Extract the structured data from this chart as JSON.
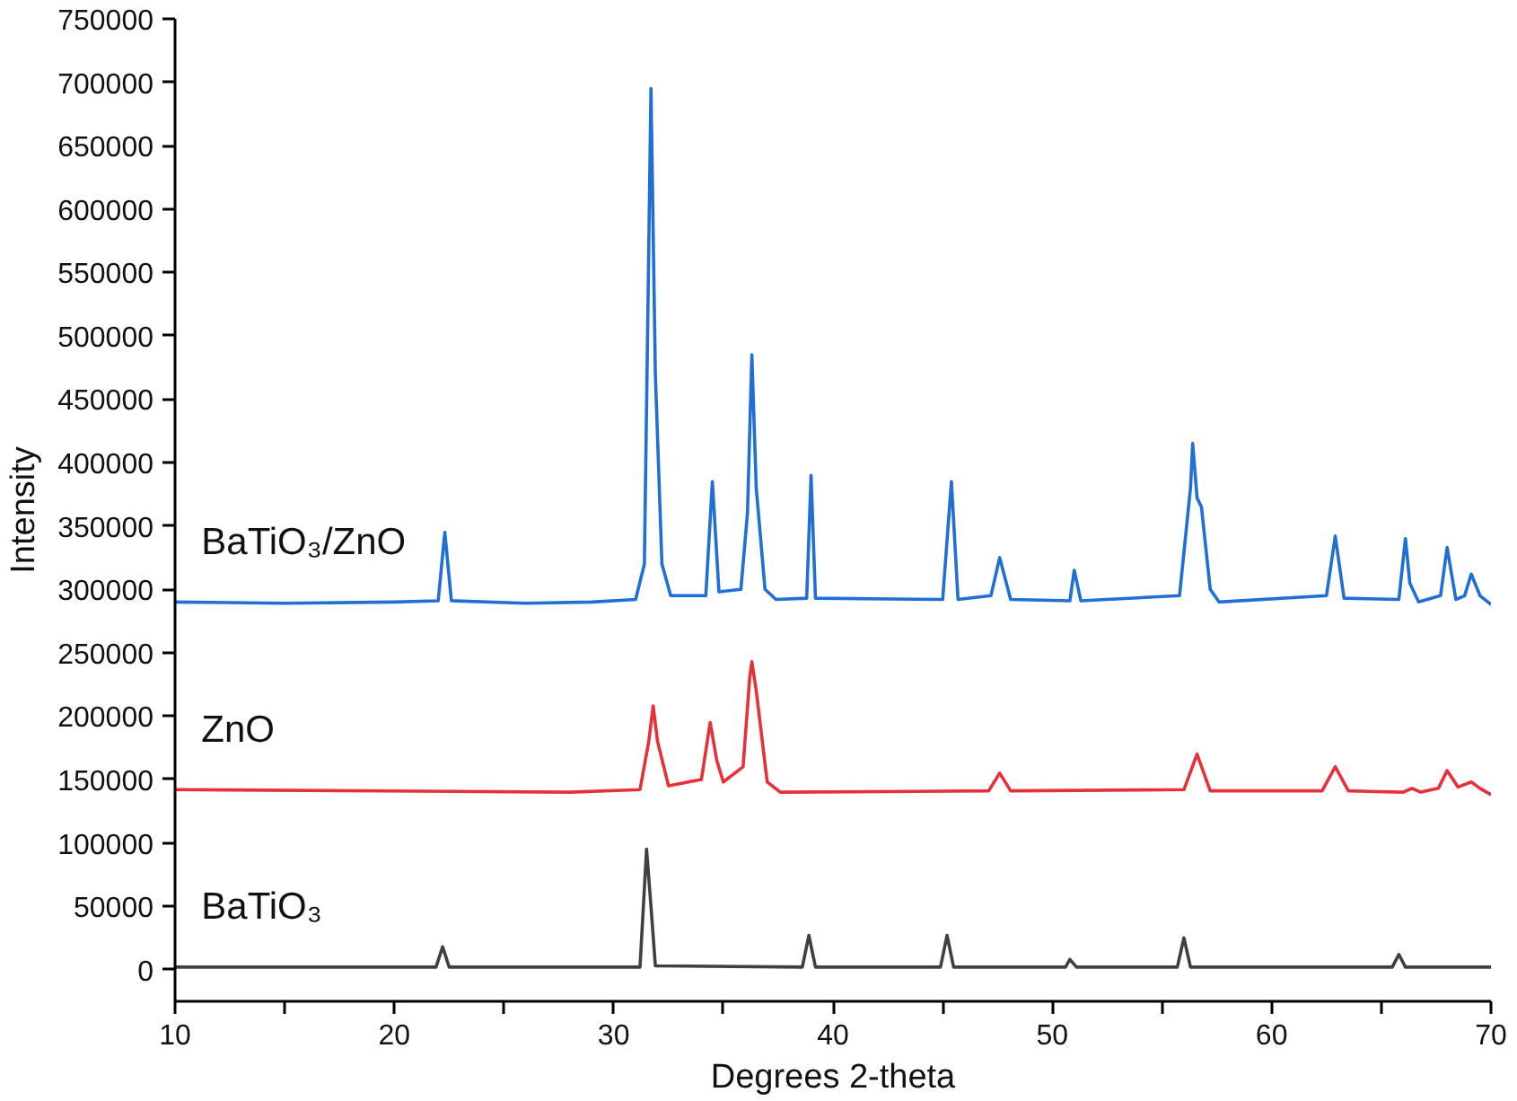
{
  "chart_data": {
    "type": "line",
    "xlabel": "Degrees 2-theta",
    "ylabel": "Intensity",
    "xlim": [
      10,
      70
    ],
    "ylim": [
      -25000,
      750000
    ],
    "xticks": [
      10,
      {
        "value": 15,
        "label": null
      },
      20,
      {
        "value": 25,
        "label": null
      },
      30,
      {
        "value": 35,
        "label": null
      },
      40,
      {
        "value": 45,
        "label": null
      },
      50,
      {
        "value": 55,
        "label": null
      },
      60,
      {
        "value": 65,
        "label": null
      },
      70
    ],
    "yticks": [
      0,
      50000,
      100000,
      150000,
      200000,
      250000,
      300000,
      350000,
      400000,
      450000,
      500000,
      550000,
      600000,
      650000,
      700000,
      750000
    ],
    "grid": false,
    "marker": "none",
    "line_style": "solid",
    "series": [
      {
        "name": "BaTiO₃/ZnO",
        "color": "#1f6fd6",
        "x": [
          10,
          15,
          20,
          22.0,
          22.3,
          22.6,
          26,
          29,
          31.0,
          31.4,
          31.7,
          31.9,
          32.2,
          32.6,
          34.2,
          34.5,
          34.8,
          35.8,
          36.1,
          36.3,
          36.5,
          36.9,
          37.4,
          38.8,
          39.0,
          39.2,
          45.0,
          45.4,
          45.7,
          47.2,
          47.6,
          48.1,
          50.8,
          51.0,
          51.3,
          55.8,
          56.3,
          56.4,
          56.6,
          56.8,
          57.2,
          57.6,
          62.5,
          62.9,
          63.3,
          65.8,
          66.1,
          66.3,
          66.7,
          67.7,
          68.0,
          68.4,
          68.8,
          69.1,
          69.5,
          70
        ],
        "values": [
          290000,
          289000,
          290000,
          291000,
          345000,
          291000,
          289000,
          290000,
          292000,
          320000,
          695000,
          470000,
          320000,
          295000,
          295000,
          385000,
          298000,
          300000,
          360000,
          485000,
          380000,
          300000,
          292000,
          293000,
          390000,
          293000,
          292000,
          385000,
          292000,
          295000,
          325000,
          292000,
          291000,
          315000,
          291000,
          295000,
          380000,
          415000,
          372000,
          365000,
          300000,
          290000,
          295000,
          342000,
          293000,
          292000,
          340000,
          305000,
          290000,
          295000,
          333000,
          292000,
          295000,
          312000,
          295000,
          288000
        ]
      },
      {
        "name": "ZnO",
        "color": "#e8303a",
        "x": [
          10,
          28,
          31.2,
          31.6,
          31.8,
          32.0,
          32.5,
          34.0,
          34.4,
          34.7,
          35.0,
          35.9,
          36.2,
          36.3,
          36.5,
          37.0,
          37.6,
          47.1,
          47.6,
          48.1,
          56.0,
          56.6,
          57.2,
          62.3,
          62.9,
          63.5,
          66.0,
          66.4,
          66.8,
          67.6,
          68.0,
          68.5,
          69.1,
          69.5,
          70
        ],
        "values": [
          142000,
          140000,
          142000,
          180000,
          208000,
          180000,
          145000,
          150000,
          195000,
          165000,
          148000,
          160000,
          230000,
          243000,
          220000,
          148000,
          140000,
          141000,
          155000,
          141000,
          142000,
          170000,
          141000,
          141000,
          160000,
          141000,
          140000,
          143000,
          140000,
          143000,
          157000,
          144000,
          148000,
          143000,
          138000
        ]
      },
      {
        "name": "BaTiO₃",
        "color": "#404040",
        "x": [
          10,
          21.9,
          22.2,
          22.5,
          31.2,
          31.5,
          31.7,
          31.9,
          38.6,
          38.9,
          39.2,
          44.9,
          45.2,
          45.5,
          50.6,
          50.8,
          51.1,
          55.7,
          56.0,
          56.3,
          65.5,
          65.8,
          66.1,
          70
        ],
        "values": [
          2000,
          2000,
          18000,
          2000,
          2000,
          95000,
          50000,
          3000,
          2000,
          27000,
          2000,
          2000,
          27000,
          2000,
          2000,
          8000,
          2000,
          2000,
          25000,
          2000,
          2000,
          12000,
          2000,
          2000
        ]
      }
    ]
  }
}
